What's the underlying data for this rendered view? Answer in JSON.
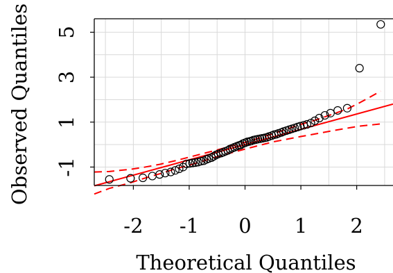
{
  "chart_data": {
    "type": "scatter",
    "xlabel": "Theoretical Quantiles",
    "ylabel": "Observed Quantiles",
    "x_ticks": [
      -2,
      -1,
      0,
      1,
      2
    ],
    "x_tick_labels": [
      "-2",
      "-1",
      "0",
      "1",
      "2"
    ],
    "y_ticks": [
      -1,
      1,
      3,
      5
    ],
    "y_tick_labels": [
      "-1",
      "1",
      "3",
      "5"
    ],
    "xlim": [
      -2.7,
      2.65
    ],
    "ylim": [
      -1.82,
      5.6
    ],
    "grid": true,
    "colors": {
      "points": "#000000",
      "reference_line": "#ff0000",
      "band": "#ff0000",
      "grid": "#d9d9d9"
    },
    "points": {
      "x": [
        -2.43,
        -2.05,
        -1.83,
        -1.66,
        -1.53,
        -1.43,
        -1.33,
        -1.25,
        -1.18,
        -1.11,
        -1.05,
        -0.99,
        -0.94,
        -0.89,
        -0.84,
        -0.79,
        -0.74,
        -0.69,
        -0.65,
        -0.6,
        -0.56,
        -0.52,
        -0.48,
        -0.43,
        -0.39,
        -0.35,
        -0.31,
        -0.27,
        -0.23,
        -0.19,
        -0.15,
        -0.11,
        -0.08,
        -0.04,
        0.0,
        0.04,
        0.08,
        0.11,
        0.15,
        0.19,
        0.23,
        0.27,
        0.31,
        0.35,
        0.39,
        0.43,
        0.48,
        0.52,
        0.56,
        0.6,
        0.65,
        0.69,
        0.74,
        0.79,
        0.84,
        0.89,
        0.94,
        0.99,
        1.05,
        1.11,
        1.18,
        1.25,
        1.33,
        1.43,
        1.53,
        1.66,
        1.83,
        2.05,
        2.43
      ],
      "y": [
        -1.55,
        -1.5,
        -1.48,
        -1.4,
        -1.33,
        -1.27,
        -1.22,
        -1.15,
        -1.08,
        -1.0,
        -0.86,
        -0.84,
        -0.82,
        -0.8,
        -0.78,
        -0.74,
        -0.72,
        -0.66,
        -0.62,
        -0.58,
        -0.52,
        -0.46,
        -0.42,
        -0.38,
        -0.34,
        -0.3,
        -0.26,
        -0.2,
        -0.16,
        -0.12,
        -0.08,
        -0.04,
        -0.02,
        0.04,
        0.08,
        0.12,
        0.14,
        0.16,
        0.2,
        0.22,
        0.24,
        0.26,
        0.28,
        0.3,
        0.32,
        0.36,
        0.4,
        0.44,
        0.46,
        0.5,
        0.54,
        0.58,
        0.62,
        0.66,
        0.7,
        0.74,
        0.78,
        0.82,
        0.86,
        0.9,
        0.96,
        1.06,
        1.18,
        1.3,
        1.4,
        1.52,
        1.62,
        3.4,
        5.35
      ]
    },
    "reference_line": {
      "intercept": 0.0,
      "slope": 0.68
    },
    "confidence_band": {
      "x": [
        -2.7,
        -2.43,
        -2.05,
        -1.83,
        -1.53,
        -1.25,
        -1.0,
        -0.5,
        0.0,
        0.5,
        1.0,
        1.25,
        1.53,
        1.83,
        2.05,
        2.43
      ],
      "lower": [
        -2.2,
        -1.95,
        -1.7,
        -1.52,
        -1.3,
        -1.08,
        -0.92,
        -0.54,
        -0.2,
        0.12,
        0.36,
        0.47,
        0.6,
        0.73,
        0.82,
        0.92
      ],
      "upper": [
        -1.22,
        -1.2,
        -1.1,
        -1.02,
        -0.88,
        -0.72,
        -0.56,
        -0.24,
        0.1,
        0.48,
        0.9,
        1.08,
        1.32,
        1.58,
        1.86,
        2.38
      ]
    }
  }
}
